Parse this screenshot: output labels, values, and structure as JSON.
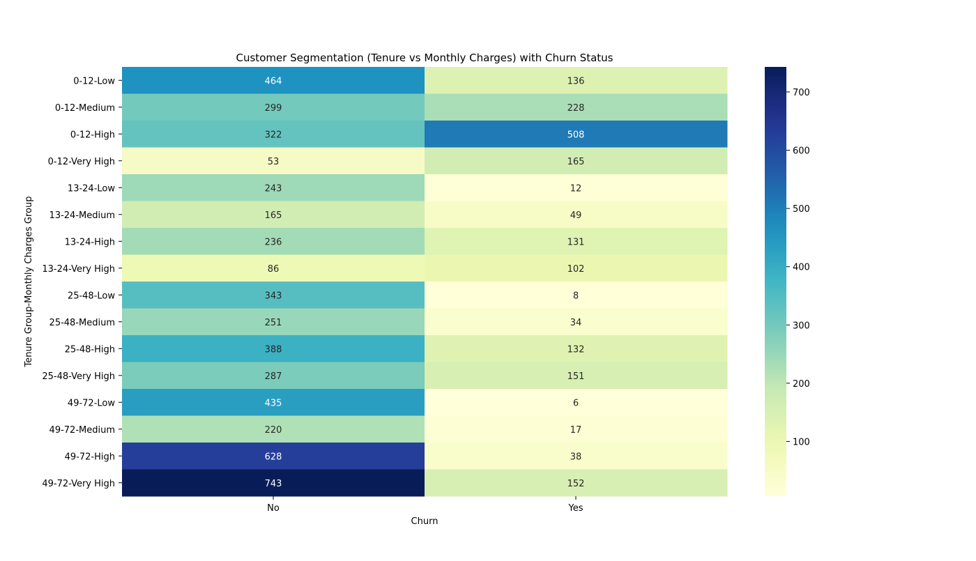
{
  "chart_data": {
    "type": "heatmap",
    "title": "Customer Segmentation (Tenure vs Monthly Charges) with Churn Status",
    "xlabel": "Churn",
    "ylabel": "Tenure Group-Monthly Charges Group",
    "x_categories": [
      "No",
      "Yes"
    ],
    "y_categories": [
      "0-12-Low",
      "0-12-Medium",
      "0-12-High",
      "0-12-Very High",
      "13-24-Low",
      "13-24-Medium",
      "13-24-High",
      "13-24-Very High",
      "25-48-Low",
      "25-48-Medium",
      "25-48-High",
      "25-48-Very High",
      "49-72-Low",
      "49-72-Medium",
      "49-72-High",
      "49-72-Very High"
    ],
    "values": [
      [
        464,
        136
      ],
      [
        299,
        228
      ],
      [
        322,
        508
      ],
      [
        53,
        165
      ],
      [
        243,
        12
      ],
      [
        165,
        49
      ],
      [
        236,
        131
      ],
      [
        86,
        102
      ],
      [
        343,
        8
      ],
      [
        251,
        34
      ],
      [
        388,
        132
      ],
      [
        287,
        151
      ],
      [
        435,
        6
      ],
      [
        220,
        17
      ],
      [
        628,
        38
      ],
      [
        743,
        152
      ]
    ],
    "colormap": "YlGnBu",
    "vmin": 6,
    "vmax": 743,
    "colorbar_ticks": [
      100,
      200,
      300,
      400,
      500,
      600,
      700
    ]
  }
}
